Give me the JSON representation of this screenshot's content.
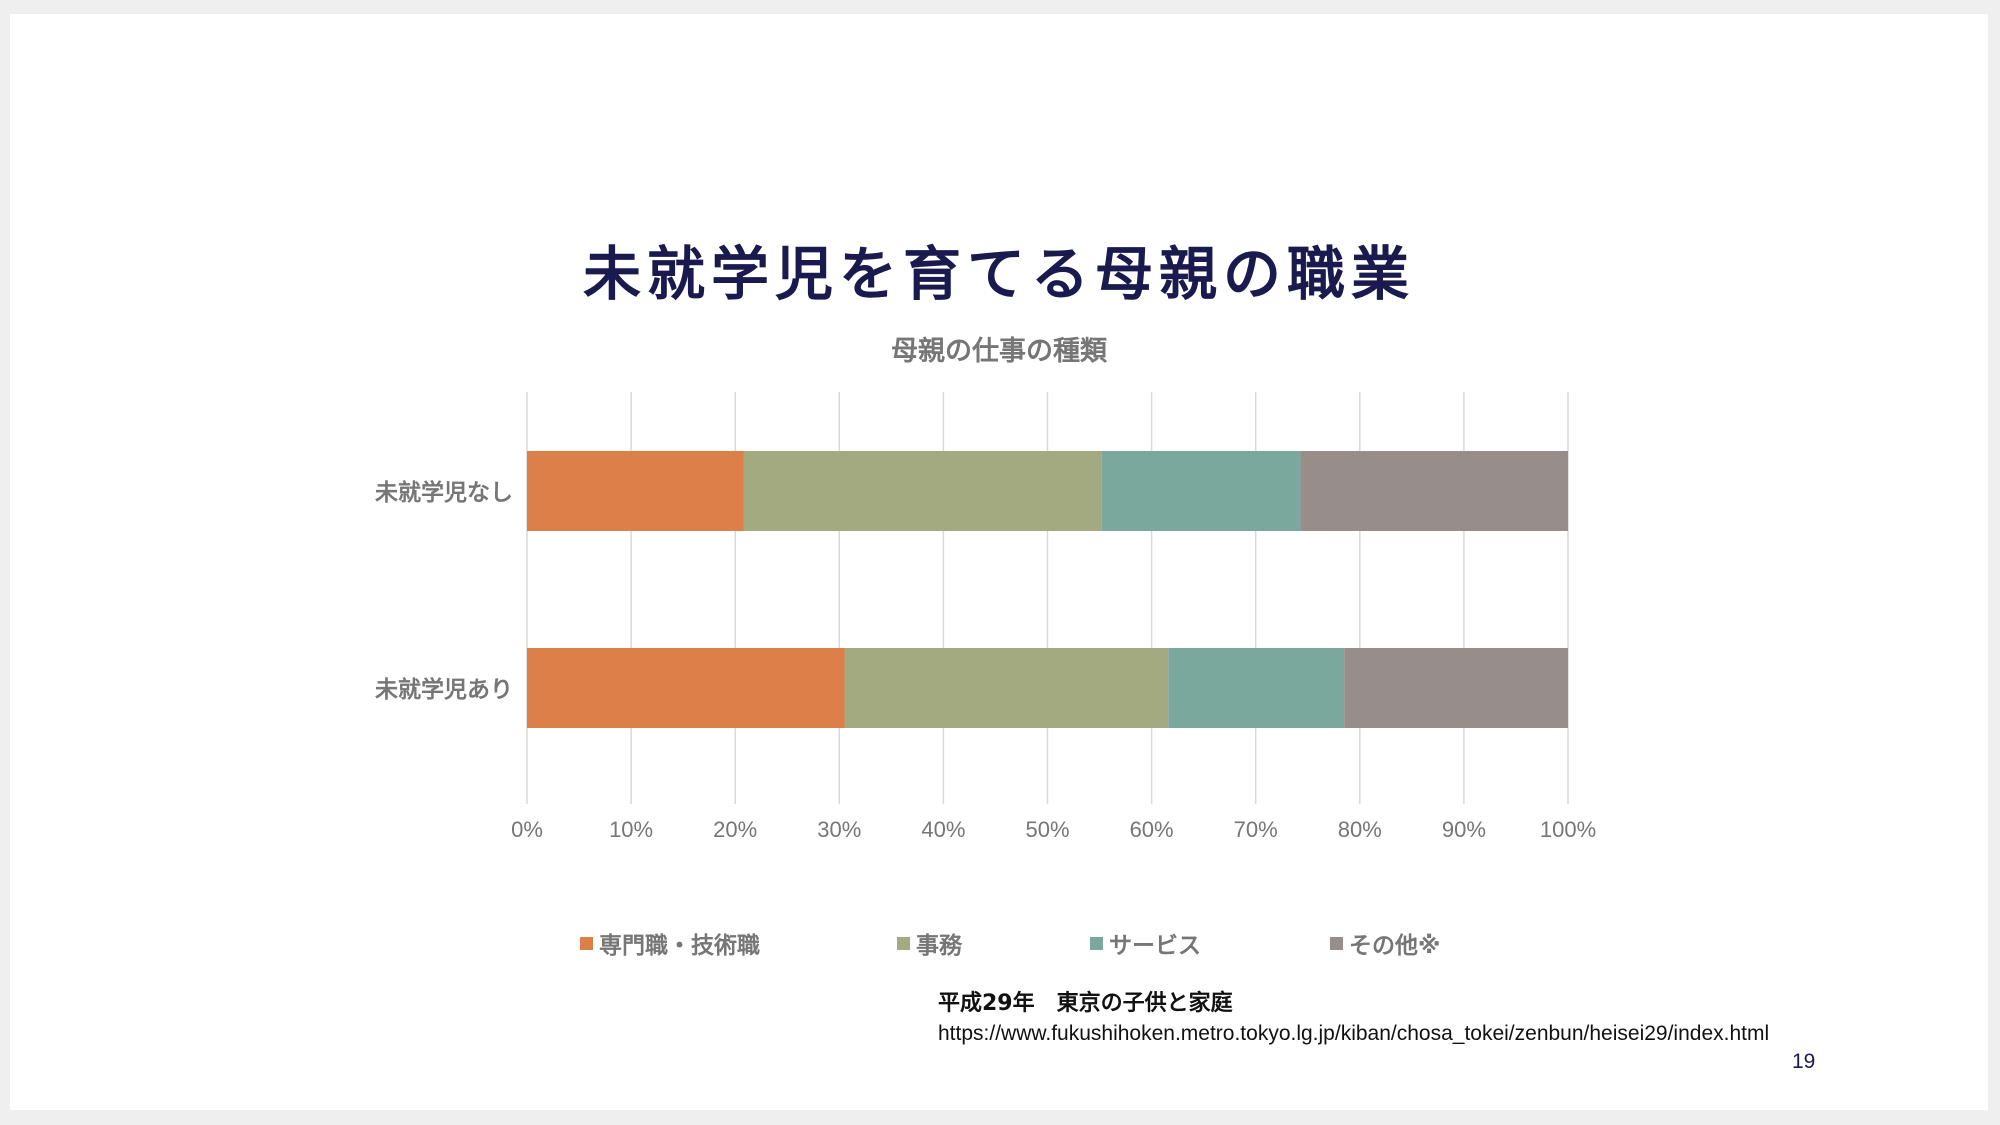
{
  "slide": {
    "title": "未就学児を育てる母親の職業",
    "source_title": "平成29年　東京の子供と家庭",
    "source_url": "https://www.fukushihoken.metro.tokyo.lg.jp/kiban/chosa_tokei/zenbun/heisei29/index.html",
    "page_number": "19"
  },
  "chart_data": {
    "type": "bar",
    "orientation": "horizontal",
    "stacked": "percent",
    "title": "母親の仕事の種類",
    "categories": [
      "未就学児なし",
      "未就学児あり"
    ],
    "series": [
      {
        "name": "専門職・技術職",
        "color": "#dc7f48",
        "values": [
          20.8,
          30.5
        ]
      },
      {
        "name": "事務",
        "color": "#a3aa80",
        "values": [
          34.4,
          31.1
        ]
      },
      {
        "name": "サービス",
        "color": "#7ba89d",
        "values": [
          19.1,
          16.9
        ]
      },
      {
        "name": "その他※",
        "color": "#978e8b",
        "values": [
          25.7,
          21.5
        ]
      }
    ],
    "xlim": [
      0,
      100
    ],
    "xticks": [
      "0%",
      "10%",
      "20%",
      "30%",
      "40%",
      "50%",
      "60%",
      "70%",
      "80%",
      "90%",
      "100%"
    ],
    "grid": true,
    "legend_position": "bottom"
  }
}
